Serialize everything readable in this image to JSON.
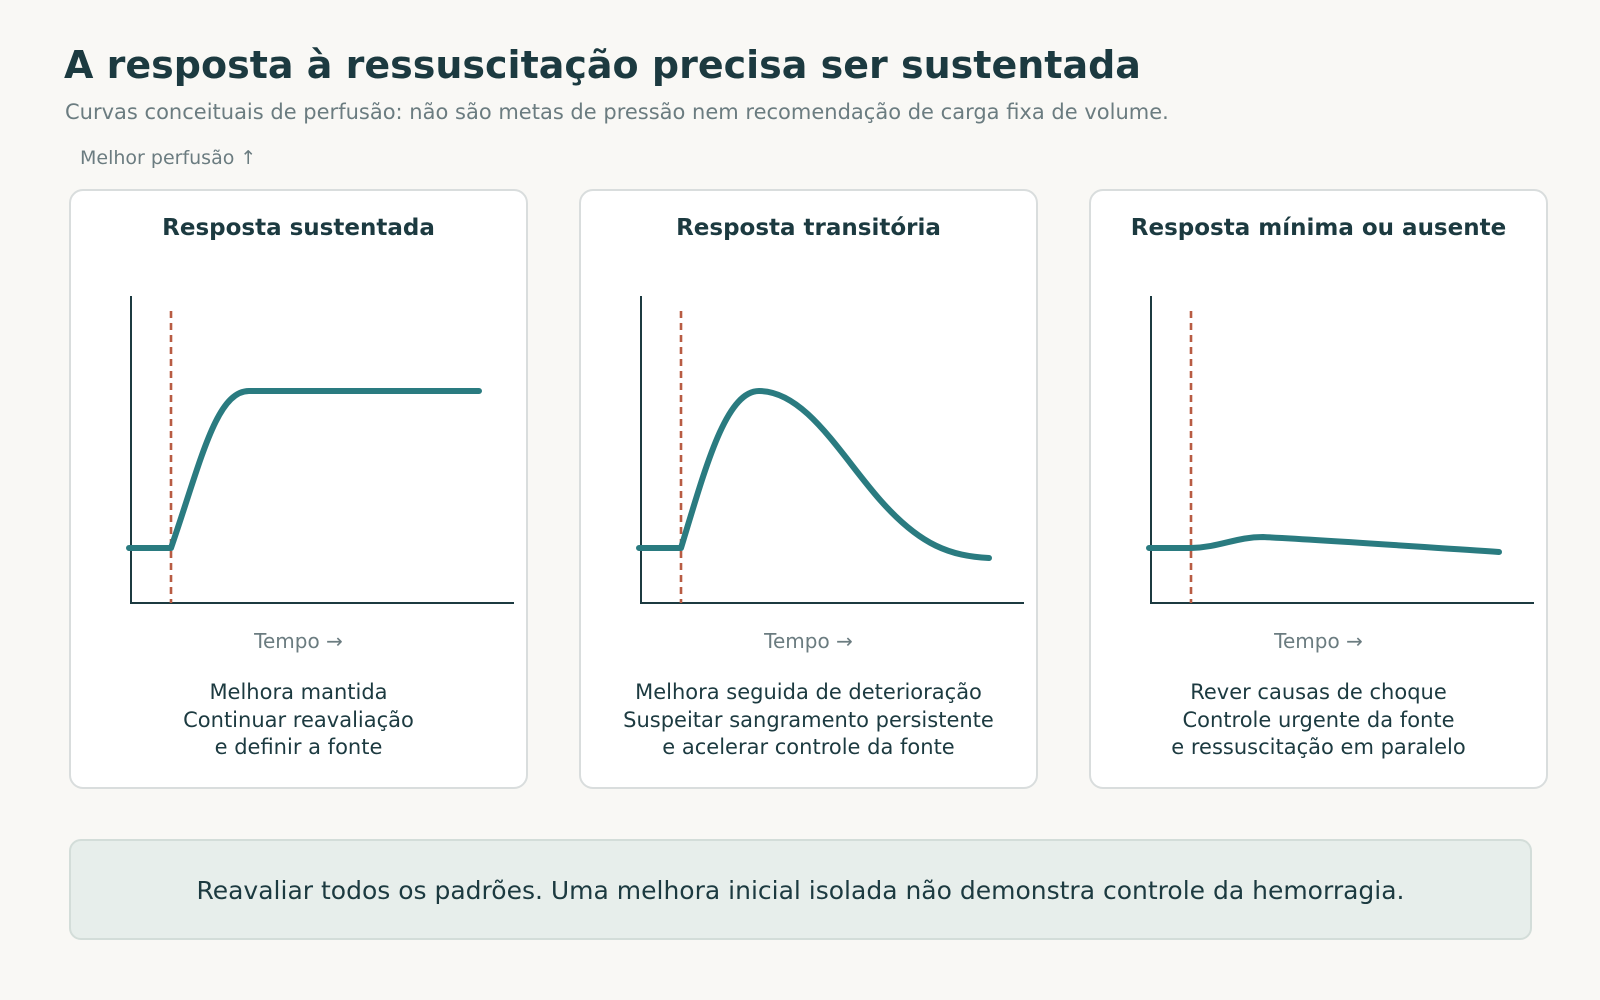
{
  "header": {
    "title": "A resposta à ressuscitação precisa ser sustentada",
    "subtitle": "Curvas conceituais de perfusão: não são metas de pressão nem recomendação de carga fixa de volume.",
    "y_hint": "Melhor perfusão ↑"
  },
  "panels": [
    {
      "title": "Resposta sustentada",
      "xlabel": "Tempo →",
      "lines": [
        "Melhora mantida",
        "Continuar reavaliação",
        "e definir a fonte"
      ]
    },
    {
      "title": "Resposta transitória",
      "xlabel": "Tempo →",
      "lines": [
        "Melhora seguida de deterioração",
        "Suspeitar sangramento persistente",
        "e acelerar controle da fonte"
      ]
    },
    {
      "title": "Resposta mínima ou ausente",
      "xlabel": "Tempo →",
      "lines": [
        "Rever causas de choque",
        "Controle urgente da fonte",
        "e ressuscitação em paralelo"
      ]
    }
  ],
  "footer": {
    "text": "Reavaliar todos os padrões. Uma melhora inicial isolada não demonstra controle da hemorragia."
  },
  "colors": {
    "curve": "#2a7b80",
    "marker": "#b85c43",
    "axis": "#1c3a40",
    "text": "#1c3a40",
    "muted": "#6b7c80",
    "panel_border": "#d9dddd",
    "footer_bg": "#e7eeeb",
    "page_bg": "#f9f8f5"
  }
}
